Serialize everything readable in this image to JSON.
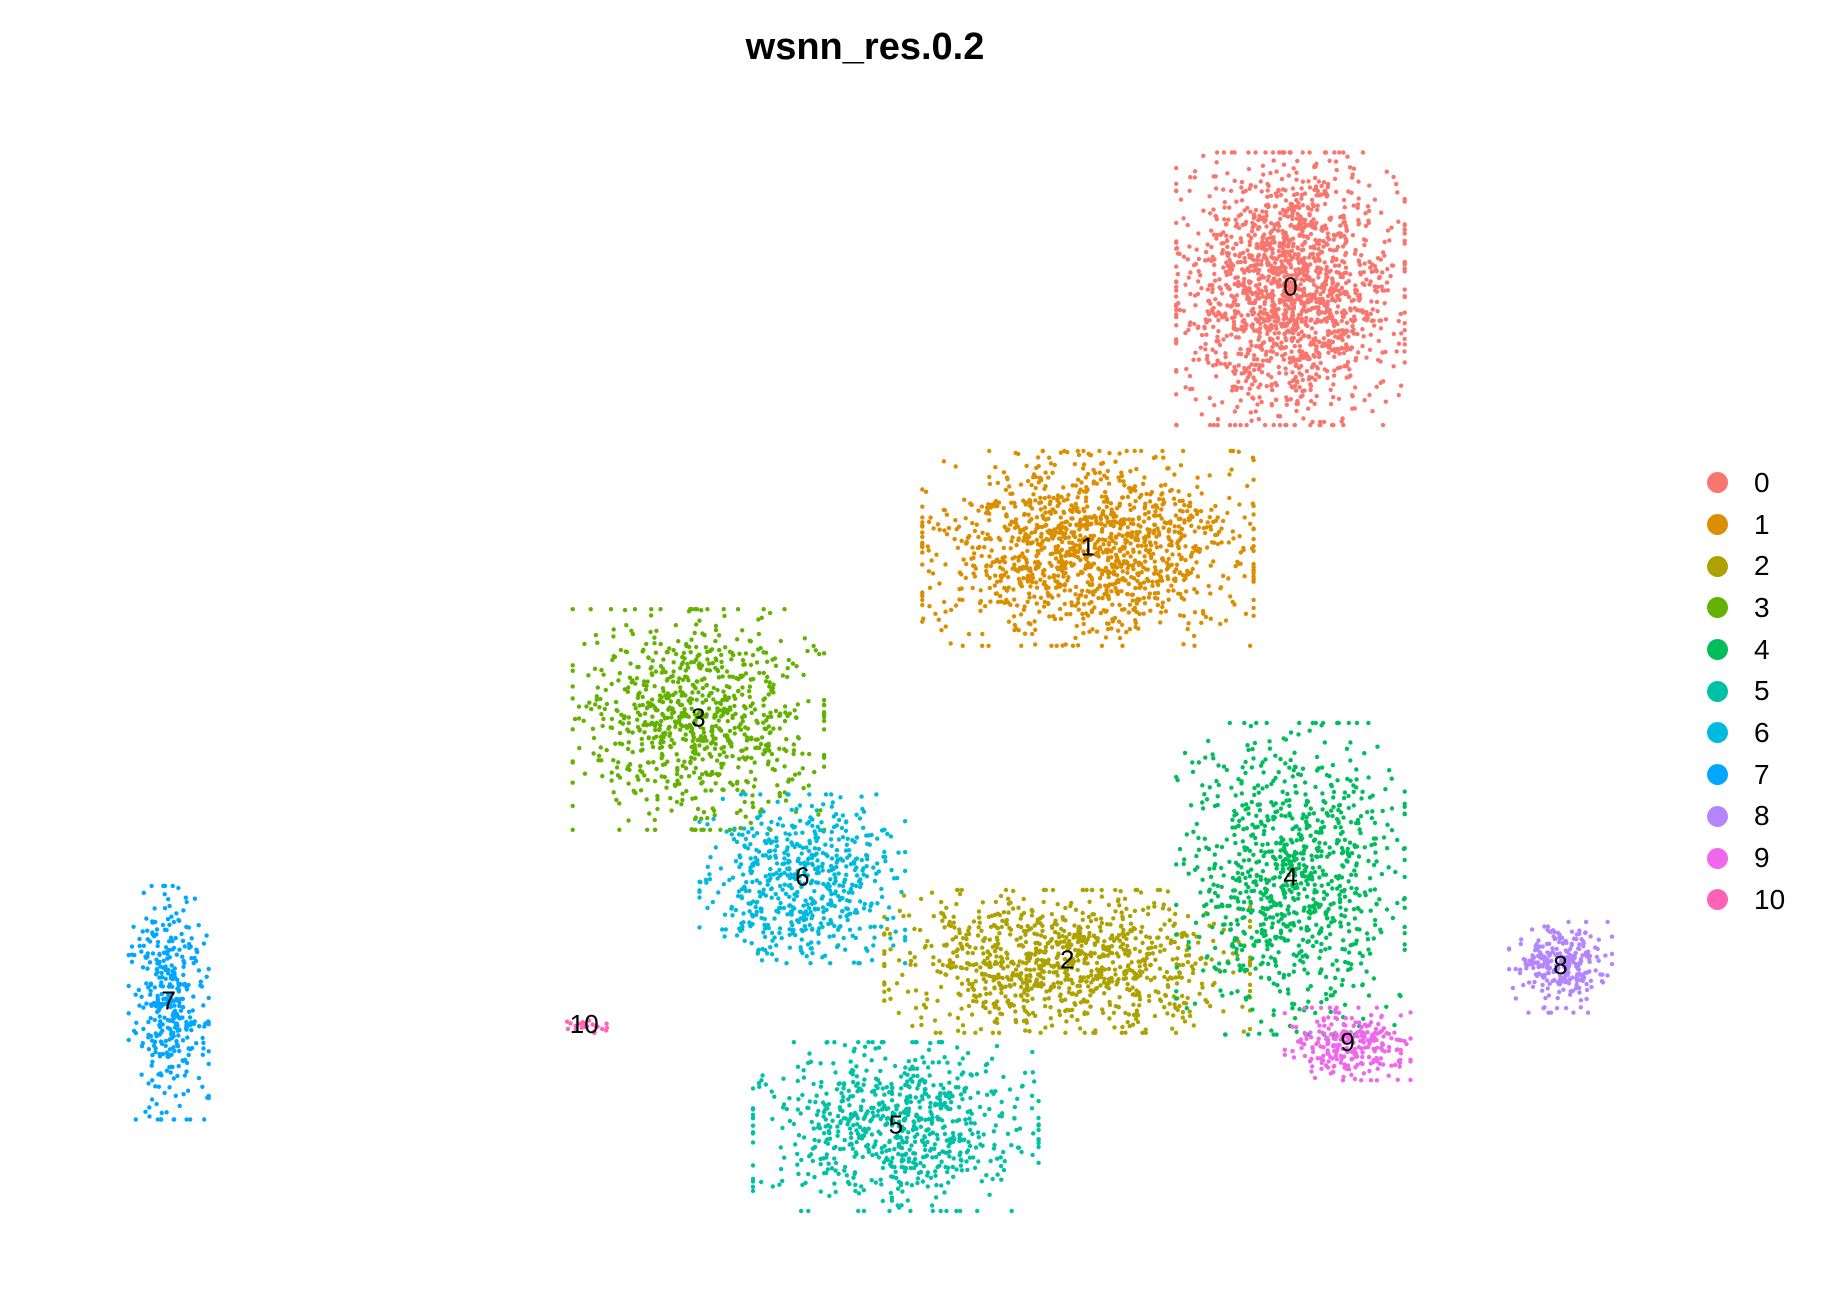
{
  "chart_data": {
    "type": "scatter",
    "title": "wsnn_res.0.2",
    "xlabel": "",
    "ylabel": "",
    "axes_visible": false,
    "grid": false,
    "legend_position": "right",
    "legend": [
      {
        "label": "0",
        "color": "#F8766D"
      },
      {
        "label": "1",
        "color": "#DB8E00"
      },
      {
        "label": "2",
        "color": "#AEA200"
      },
      {
        "label": "3",
        "color": "#64B200"
      },
      {
        "label": "4",
        "color": "#00BD5C"
      },
      {
        "label": "5",
        "color": "#00C1A7"
      },
      {
        "label": "6",
        "color": "#00BADE"
      },
      {
        "label": "7",
        "color": "#00A6FF"
      },
      {
        "label": "8",
        "color": "#B385FF"
      },
      {
        "label": "9",
        "color": "#EF67EB"
      },
      {
        "label": "10",
        "color": "#FF63B6"
      }
    ],
    "clusters": [
      {
        "id": "0",
        "label": "0",
        "cx": 8.5,
        "cy": 7.8,
        "sx": 1.0,
        "sy": 1.05,
        "n": 1700
      },
      {
        "id": "1",
        "label": "1",
        "cx": 4.6,
        "cy": 3.4,
        "sx": 1.45,
        "sy": 0.75,
        "n": 1350
      },
      {
        "id": "2",
        "label": "2",
        "cx": 4.2,
        "cy": -3.6,
        "sx": 1.6,
        "sy": 0.55,
        "n": 1000
      },
      {
        "id": "3",
        "label": "3",
        "cx": -2.9,
        "cy": 0.5,
        "sx": 1.1,
        "sy": 0.85,
        "n": 850
      },
      {
        "id": "4",
        "label": "4",
        "cx": 8.5,
        "cy": -2.2,
        "sx": 1.0,
        "sy": 1.2,
        "n": 950
      },
      {
        "id": "5",
        "label": "5",
        "cx": 0.9,
        "cy": -6.4,
        "sx": 1.25,
        "sy": 0.65,
        "n": 750
      },
      {
        "id": "6",
        "label": "6",
        "cx": -0.9,
        "cy": -2.2,
        "sx": 0.9,
        "sy": 0.65,
        "n": 600
      },
      {
        "id": "7",
        "label": "7",
        "cx": -13.1,
        "cy": -4.3,
        "sx": 0.35,
        "sy": 0.9,
        "n": 380
      },
      {
        "id": "8",
        "label": "8",
        "cx": 13.7,
        "cy": -3.7,
        "sx": 0.45,
        "sy": 0.35,
        "n": 270
      },
      {
        "id": "9",
        "label": "9",
        "cx": 9.6,
        "cy": -5.0,
        "sx": 0.55,
        "sy": 0.28,
        "n": 260
      },
      {
        "id": "10",
        "label": "10",
        "cx": -5.1,
        "cy": -4.7,
        "sx": 0.2,
        "sy": 0.08,
        "n": 22
      }
    ],
    "xlim": [
      -15,
      16
    ],
    "ylim": [
      -9,
      11
    ]
  }
}
